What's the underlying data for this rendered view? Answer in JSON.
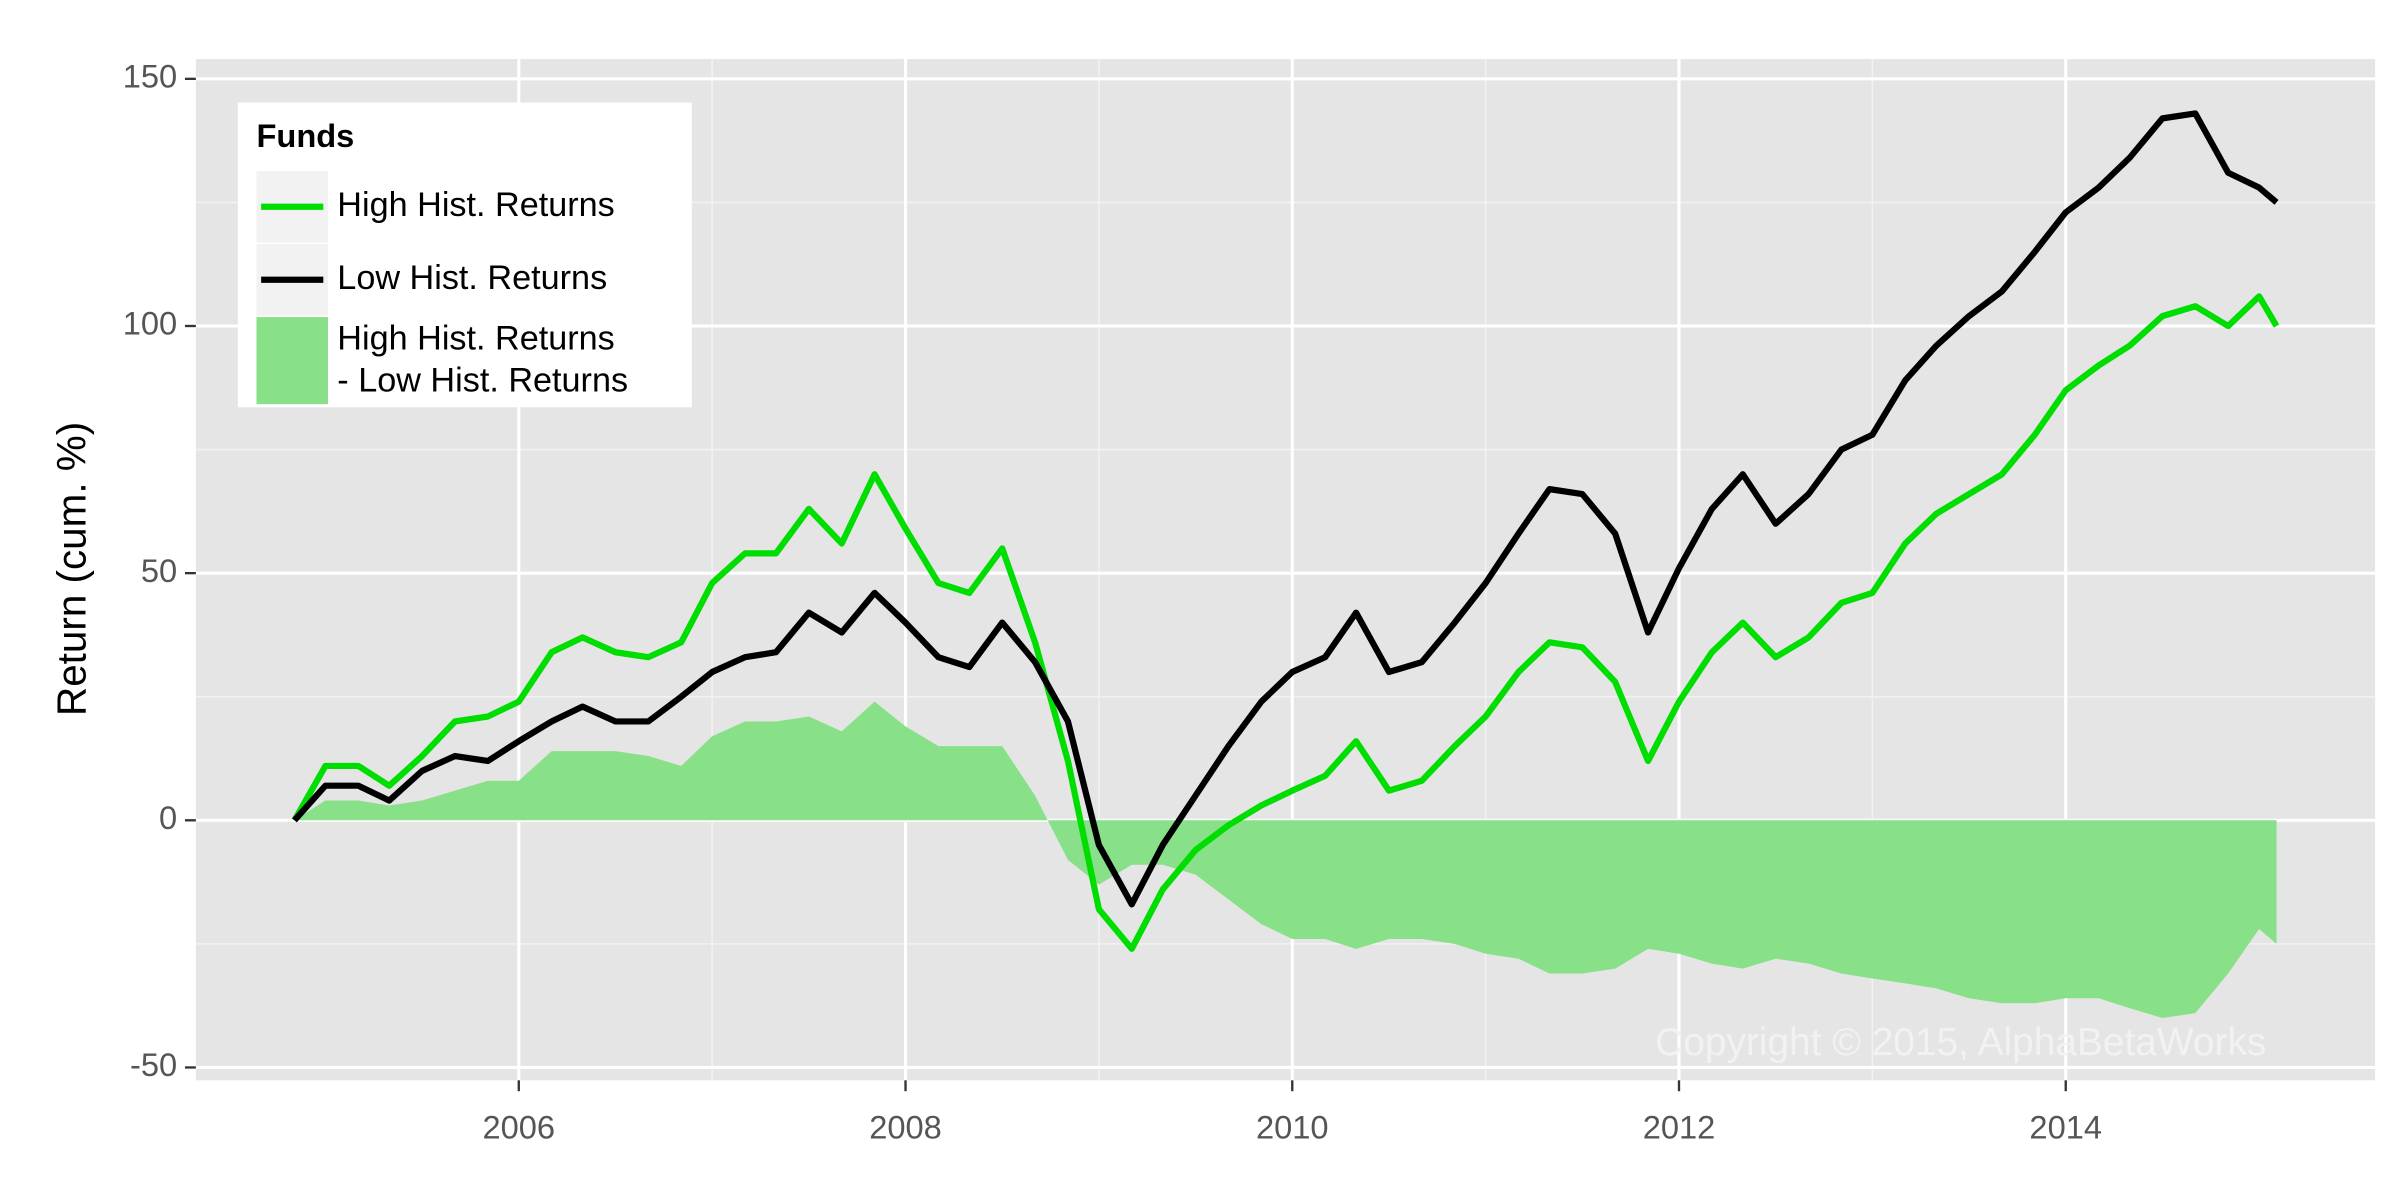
{
  "chart_data": {
    "type": "line",
    "ylabel": "Return (cum. %)",
    "legend_title": "Funds",
    "annotation": "Copyright © 2015, AlphaBetaWorks",
    "xlim": [
      2004.33,
      2015.6
    ],
    "xticks": [
      2006,
      2008,
      2010,
      2012,
      2014
    ],
    "ylim": [
      -52.6,
      154
    ],
    "yticks": [
      -50,
      0,
      50,
      100,
      150
    ],
    "grid": true,
    "legend": "top-left",
    "x": [
      2004.84,
      2005.0,
      2005.17,
      2005.33,
      2005.5,
      2005.67,
      2005.84,
      2006.0,
      2006.17,
      2006.33,
      2006.5,
      2006.67,
      2006.84,
      2007.0,
      2007.17,
      2007.33,
      2007.5,
      2007.67,
      2007.84,
      2008.0,
      2008.17,
      2008.33,
      2008.5,
      2008.67,
      2008.84,
      2009.0,
      2009.17,
      2009.33,
      2009.5,
      2009.67,
      2009.84,
      2010.0,
      2010.17,
      2010.33,
      2010.5,
      2010.67,
      2010.84,
      2011.0,
      2011.17,
      2011.33,
      2011.5,
      2011.67,
      2011.84,
      2012.0,
      2012.17,
      2012.33,
      2012.5,
      2012.67,
      2012.84,
      2013.0,
      2013.17,
      2013.33,
      2013.5,
      2013.67,
      2013.84,
      2014.0,
      2014.17,
      2014.33,
      2014.5,
      2014.67,
      2014.84,
      2015.0,
      2015.09
    ],
    "series": [
      {
        "name": "High Hist. Returns\n- Low Hist. Returns",
        "color": "#88e088",
        "style": "area",
        "values": [
          0,
          4,
          4,
          3,
          4,
          6,
          8,
          8,
          14,
          14,
          14,
          13,
          11,
          17,
          20,
          20,
          21,
          18,
          24,
          19,
          15,
          15,
          15,
          5,
          -8,
          -13,
          -9,
          -9,
          -11,
          -16,
          -21,
          -24,
          -24,
          -26,
          -24,
          -24,
          -25,
          -27,
          -28,
          -31,
          -31,
          -30,
          -26,
          -27,
          -29,
          -30,
          -28,
          -29,
          -31,
          -32,
          -33,
          -34,
          -36,
          -37,
          -37,
          -36,
          -36,
          -38,
          -40,
          -39,
          -31,
          -22,
          -25
        ]
      },
      {
        "name": "High Hist. Returns",
        "color": "#00dd00",
        "style": "line",
        "values": [
          0,
          11,
          11,
          7,
          13,
          20,
          21,
          24,
          34,
          37,
          34,
          33,
          36,
          48,
          54,
          54,
          63,
          56,
          70,
          59,
          48,
          46,
          55,
          36,
          12,
          -18,
          -26,
          -14,
          -6,
          -1,
          3,
          6,
          9,
          16,
          6,
          8,
          15,
          21,
          30,
          36,
          35,
          28,
          12,
          24,
          34,
          40,
          33,
          37,
          44,
          46,
          56,
          62,
          66,
          70,
          78,
          87,
          92,
          96,
          102,
          104,
          100,
          106,
          100
        ]
      },
      {
        "name": "Low Hist. Returns",
        "color": "#000000",
        "style": "line",
        "values": [
          0,
          7,
          7,
          4,
          10,
          13,
          12,
          16,
          20,
          23,
          20,
          20,
          25,
          30,
          33,
          34,
          42,
          38,
          46,
          40,
          33,
          31,
          40,
          32,
          20,
          -5,
          -17,
          -5,
          5,
          15,
          24,
          30,
          33,
          42,
          30,
          32,
          40,
          48,
          58,
          67,
          66,
          58,
          38,
          51,
          63,
          70,
          60,
          66,
          75,
          78,
          89,
          96,
          102,
          107,
          115,
          123,
          128,
          134,
          142,
          143,
          131,
          128,
          125
        ]
      }
    ]
  }
}
